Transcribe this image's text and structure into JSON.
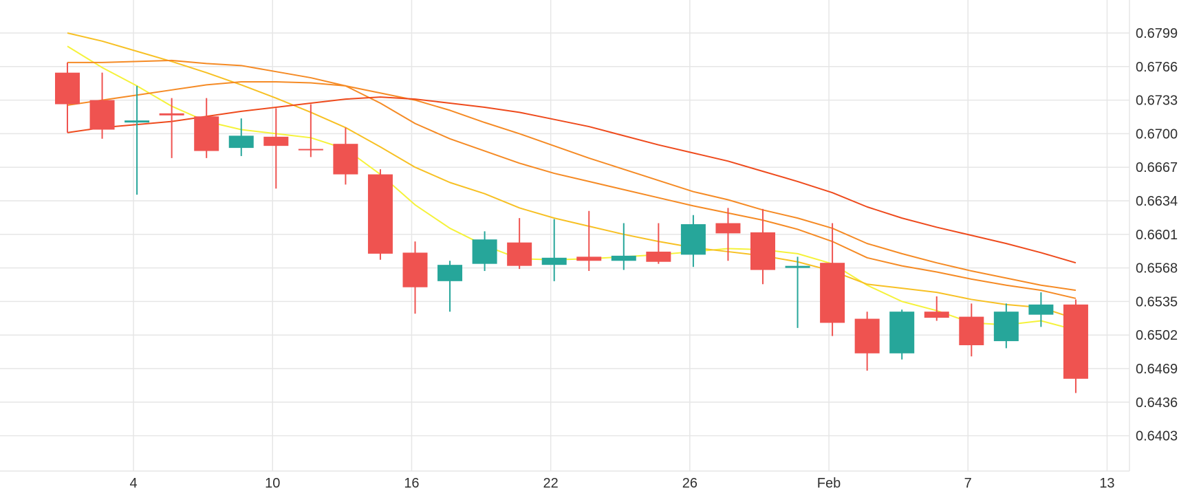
{
  "chart_data": {
    "type": "candlestick",
    "title": "",
    "xlabel": "",
    "ylabel": "",
    "grid": true,
    "legend": "none",
    "ylim": [
      0.637,
      0.6832
    ],
    "y_ticks": [
      "0.6799",
      "0.6766",
      "0.6733",
      "0.6700",
      "0.6667",
      "0.6634",
      "0.6601",
      "0.6568",
      "0.6535",
      "0.6502",
      "0.6469",
      "0.6436",
      "0.6403"
    ],
    "x_ticks": [
      {
        "label": "4",
        "index": 1
      },
      {
        "label": "10",
        "index": 5
      },
      {
        "label": "16",
        "index": 9
      },
      {
        "label": "22",
        "index": 13
      },
      {
        "label": "26",
        "index": 17
      },
      {
        "label": "Feb",
        "index": 21
      },
      {
        "label": "7",
        "index": 25
      },
      {
        "label": "13",
        "index": 29
      }
    ],
    "colors": {
      "up": "#26a69a",
      "down": "#ef5350",
      "grid": "#e6e6e6",
      "text": "#2f2f2f",
      "ma_fast": "#f5f23a",
      "ma_2": "#f7c023",
      "ma_3": "#f58a24",
      "ma_4": "#ee4a1c"
    },
    "candles": [
      {
        "o": 0.676,
        "h": 0.677,
        "l": 0.6701,
        "c": 0.6729
      },
      {
        "o": 0.6733,
        "h": 0.676,
        "l": 0.6695,
        "c": 0.6704
      },
      {
        "o": 0.6711,
        "h": 0.6747,
        "l": 0.664,
        "c": 0.6713
      },
      {
        "o": 0.672,
        "h": 0.6735,
        "l": 0.6676,
        "c": 0.6718
      },
      {
        "o": 0.6717,
        "h": 0.6735,
        "l": 0.6676,
        "c": 0.6683
      },
      {
        "o": 0.6686,
        "h": 0.6715,
        "l": 0.6678,
        "c": 0.6698
      },
      {
        "o": 0.6697,
        "h": 0.6725,
        "l": 0.6646,
        "c": 0.6688
      },
      {
        "o": 0.6685,
        "h": 0.6729,
        "l": 0.6677,
        "c": 0.6684
      },
      {
        "o": 0.669,
        "h": 0.6706,
        "l": 0.665,
        "c": 0.666
      },
      {
        "o": 0.666,
        "h": 0.6665,
        "l": 0.6576,
        "c": 0.6582
      },
      {
        "o": 0.6583,
        "h": 0.6594,
        "l": 0.6523,
        "c": 0.6549
      },
      {
        "o": 0.6555,
        "h": 0.6575,
        "l": 0.6525,
        "c": 0.6571
      },
      {
        "o": 0.6572,
        "h": 0.6604,
        "l": 0.6565,
        "c": 0.6596
      },
      {
        "o": 0.6593,
        "h": 0.6617,
        "l": 0.6567,
        "c": 0.657
      },
      {
        "o": 0.6571,
        "h": 0.6616,
        "l": 0.6555,
        "c": 0.6578
      },
      {
        "o": 0.6579,
        "h": 0.6624,
        "l": 0.6565,
        "c": 0.6575
      },
      {
        "o": 0.6575,
        "h": 0.6612,
        "l": 0.6566,
        "c": 0.658
      },
      {
        "o": 0.6584,
        "h": 0.6612,
        "l": 0.6572,
        "c": 0.6574
      },
      {
        "o": 0.6581,
        "h": 0.662,
        "l": 0.6569,
        "c": 0.6611
      },
      {
        "o": 0.6612,
        "h": 0.6627,
        "l": 0.6575,
        "c": 0.6602
      },
      {
        "o": 0.6603,
        "h": 0.6626,
        "l": 0.6552,
        "c": 0.6566
      },
      {
        "o": 0.6568,
        "h": 0.6579,
        "l": 0.6509,
        "c": 0.657
      },
      {
        "o": 0.6573,
        "h": 0.6612,
        "l": 0.6501,
        "c": 0.6514
      },
      {
        "o": 0.6518,
        "h": 0.6525,
        "l": 0.6467,
        "c": 0.6484
      },
      {
        "o": 0.6484,
        "h": 0.6527,
        "l": 0.6478,
        "c": 0.6525
      },
      {
        "o": 0.6525,
        "h": 0.654,
        "l": 0.6516,
        "c": 0.6519
      },
      {
        "o": 0.652,
        "h": 0.6533,
        "l": 0.6481,
        "c": 0.6492
      },
      {
        "o": 0.6496,
        "h": 0.6533,
        "l": 0.6489,
        "c": 0.6525
      },
      {
        "o": 0.6522,
        "h": 0.6544,
        "l": 0.651,
        "c": 0.6532
      },
      {
        "o": 0.6532,
        "h": 0.6537,
        "l": 0.6445,
        "c": 0.6459
      }
    ],
    "series": [
      {
        "color_key": "ma_fast",
        "values": [
          0.6786,
          0.6765,
          0.6747,
          0.6727,
          0.6712,
          0.6704,
          0.67,
          0.6696,
          0.6685,
          0.666,
          0.663,
          0.6607,
          0.659,
          0.6577,
          0.6576,
          0.6577,
          0.6579,
          0.6581,
          0.6584,
          0.6587,
          0.6586,
          0.6582,
          0.6572,
          0.6551,
          0.6535,
          0.6526,
          0.6514,
          0.6512,
          0.6516,
          0.6507
        ]
      },
      {
        "color_key": "ma_2",
        "values": [
          0.6799,
          0.6791,
          0.6781,
          0.6771,
          0.676,
          0.6748,
          0.6735,
          0.6721,
          0.6706,
          0.6687,
          0.6667,
          0.6652,
          0.6641,
          0.6627,
          0.6617,
          0.6609,
          0.6601,
          0.6594,
          0.6588,
          0.6584,
          0.658,
          0.6574,
          0.6565,
          0.6552,
          0.6548,
          0.6544,
          0.6537,
          0.6532,
          0.6529,
          0.6518
        ]
      },
      {
        "color_key": "ma_3",
        "values": [
          0.677,
          0.677,
          0.6771,
          0.6772,
          0.6769,
          0.6767,
          0.6761,
          0.6755,
          0.6747,
          0.673,
          0.671,
          0.6695,
          0.6683,
          0.6671,
          0.6661,
          0.6653,
          0.6645,
          0.6637,
          0.6629,
          0.6622,
          0.6615,
          0.6606,
          0.6594,
          0.6578,
          0.657,
          0.6564,
          0.6557,
          0.6551,
          0.6546,
          0.6538
        ]
      },
      {
        "color_key": "ma_3",
        "values": [
          0.6728,
          0.6733,
          0.6738,
          0.6743,
          0.6748,
          0.6751,
          0.6751,
          0.675,
          0.6747,
          0.674,
          0.6733,
          0.6723,
          0.6711,
          0.67,
          0.6688,
          0.6676,
          0.6665,
          0.6654,
          0.6643,
          0.6635,
          0.6625,
          0.6617,
          0.6607,
          0.6592,
          0.6582,
          0.6573,
          0.6565,
          0.6558,
          0.6551,
          0.6546
        ]
      },
      {
        "color_key": "ma_4",
        "values": [
          0.6701,
          0.6706,
          0.6709,
          0.6712,
          0.6717,
          0.6722,
          0.6726,
          0.673,
          0.6734,
          0.6736,
          0.6734,
          0.673,
          0.6726,
          0.6721,
          0.6714,
          0.6707,
          0.6698,
          0.6689,
          0.6681,
          0.6673,
          0.6663,
          0.6653,
          0.6642,
          0.6628,
          0.6617,
          0.6608,
          0.66,
          0.6592,
          0.6583,
          0.6573
        ]
      }
    ]
  }
}
